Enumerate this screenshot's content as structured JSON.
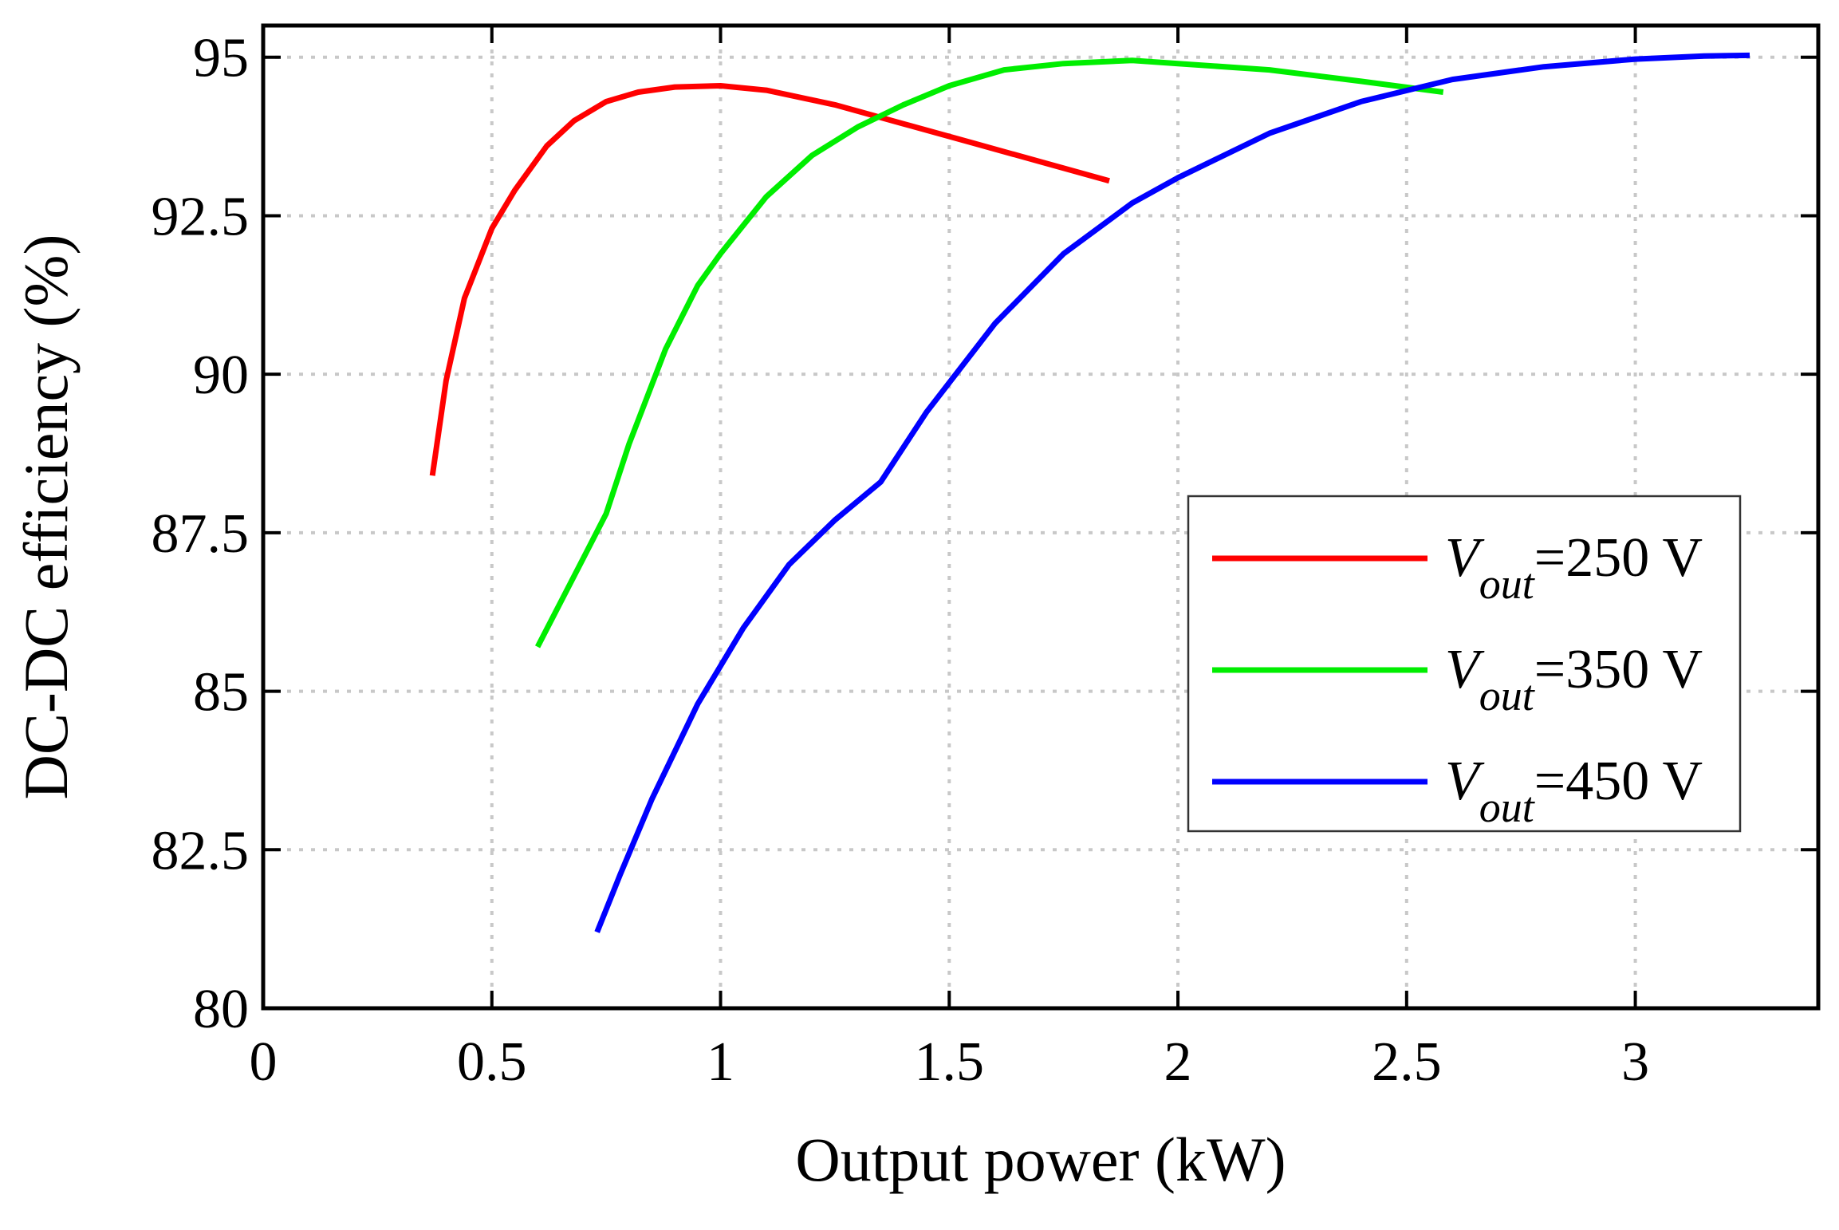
{
  "chart_data": {
    "type": "line",
    "title": "",
    "xlabel": "Output power (kW)",
    "ylabel": "DC-DC efficiency (%)",
    "xlim": [
      0,
      3.4
    ],
    "ylim": [
      80,
      95.5
    ],
    "xticks": [
      0,
      0.5,
      1,
      1.5,
      2,
      2.5,
      3
    ],
    "xtick_labels": [
      "0",
      "0.5",
      "1",
      "1.5",
      "2",
      "2.5",
      "3"
    ],
    "yticks": [
      80,
      82.5,
      85,
      87.5,
      90,
      92.5,
      95
    ],
    "ytick_labels": [
      "80",
      "82.5",
      "85",
      "87.5",
      "90",
      "92.5",
      "95"
    ],
    "grid": true,
    "legend_position": "right",
    "series": [
      {
        "name": "V_out=250 V",
        "legend_symbol": "V",
        "legend_subscript": "out",
        "legend_value": "=250 V",
        "color": "#ff0000",
        "x": [
          0.37,
          0.4,
          0.44,
          0.5,
          0.55,
          0.62,
          0.68,
          0.75,
          0.82,
          0.9,
          1.0,
          1.1,
          1.25,
          1.4,
          1.55,
          1.7,
          1.85
        ],
        "y": [
          88.4,
          89.9,
          91.2,
          92.3,
          92.9,
          93.6,
          94.0,
          94.3,
          94.45,
          94.53,
          94.55,
          94.48,
          94.25,
          93.95,
          93.65,
          93.35,
          93.05
        ]
      },
      {
        "name": "V_out=350 V",
        "legend_symbol": "V",
        "legend_subscript": "out",
        "legend_value": "=350 V",
        "color": "#00ee00",
        "x": [
          0.6,
          0.65,
          0.7,
          0.75,
          0.8,
          0.88,
          0.95,
          1.0,
          1.1,
          1.2,
          1.3,
          1.4,
          1.5,
          1.62,
          1.75,
          1.9,
          2.0,
          2.2,
          2.4,
          2.58
        ],
        "y": [
          85.7,
          86.4,
          87.1,
          87.8,
          88.9,
          90.4,
          91.4,
          91.9,
          92.8,
          93.45,
          93.9,
          94.25,
          94.55,
          94.8,
          94.9,
          94.95,
          94.9,
          94.8,
          94.62,
          94.45
        ]
      },
      {
        "name": "V_out=450 V",
        "legend_symbol": "V",
        "legend_subscript": "out",
        "legend_value": "=450 V",
        "color": "#0000ff",
        "x": [
          0.73,
          0.78,
          0.85,
          0.95,
          1.05,
          1.15,
          1.25,
          1.35,
          1.45,
          1.6,
          1.75,
          1.9,
          2.0,
          2.2,
          2.4,
          2.6,
          2.8,
          3.0,
          3.15,
          3.25
        ],
        "y": [
          81.2,
          82.1,
          83.3,
          84.8,
          86.0,
          87.0,
          87.7,
          88.3,
          89.4,
          90.8,
          91.9,
          92.7,
          93.1,
          93.8,
          94.3,
          94.65,
          94.85,
          94.97,
          95.02,
          95.03
        ]
      }
    ]
  }
}
